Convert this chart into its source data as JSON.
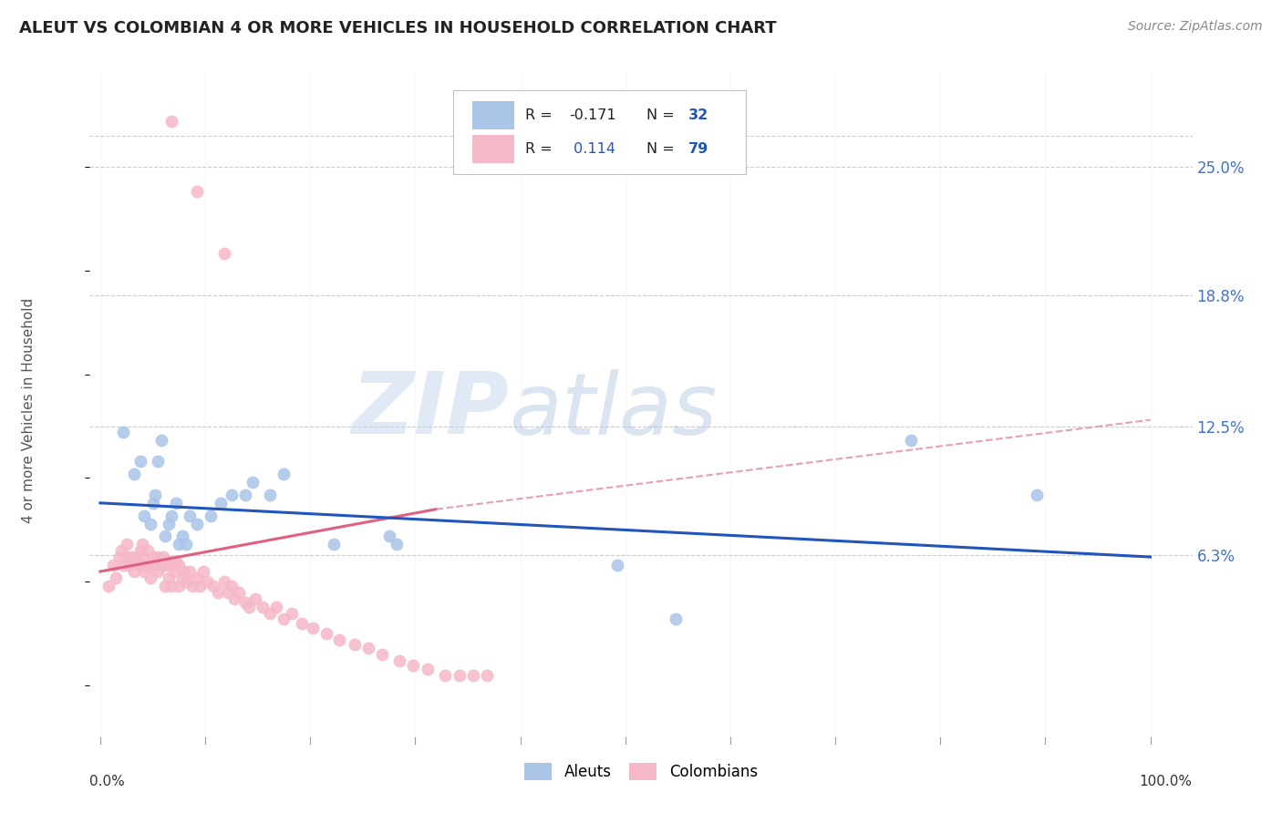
{
  "title": "ALEUT VS COLOMBIAN 4 OR MORE VEHICLES IN HOUSEHOLD CORRELATION CHART",
  "source": "Source: ZipAtlas.com",
  "ylabel": "4 or more Vehicles in Household",
  "ytick_values": [
    0.063,
    0.125,
    0.188,
    0.25
  ],
  "ytick_labels": [
    "6.3%",
    "12.5%",
    "18.8%",
    "25.0%"
  ],
  "xlim": [
    0.0,
    1.0
  ],
  "ylim": [
    -0.03,
    0.295
  ],
  "aleut_color": "#aac4e8",
  "colombian_color": "#f5b8c8",
  "aleut_line_color": "#2255bb",
  "colombian_line_color": "#e06080",
  "colombian_dash_color": "#e8a0b0",
  "watermark_zip_color": "#c8d8ee",
  "watermark_atlas_color": "#b0c8e8",
  "aleut_x": [
    0.022,
    0.032,
    0.038,
    0.042,
    0.048,
    0.05,
    0.052,
    0.055,
    0.058,
    0.062,
    0.065,
    0.068,
    0.072,
    0.075,
    0.078,
    0.082,
    0.085,
    0.092,
    0.105,
    0.115,
    0.125,
    0.138,
    0.145,
    0.162,
    0.175,
    0.222,
    0.275,
    0.282,
    0.492,
    0.548,
    0.772,
    0.892
  ],
  "aleut_y": [
    0.122,
    0.102,
    0.108,
    0.082,
    0.078,
    0.088,
    0.092,
    0.108,
    0.118,
    0.072,
    0.078,
    0.082,
    0.088,
    0.068,
    0.072,
    0.068,
    0.082,
    0.078,
    0.082,
    0.088,
    0.092,
    0.092,
    0.098,
    0.092,
    0.102,
    0.068,
    0.072,
    0.068,
    0.058,
    0.032,
    0.118,
    0.092
  ],
  "colombian_x": [
    0.008,
    0.012,
    0.015,
    0.018,
    0.02,
    0.022,
    0.025,
    0.025,
    0.028,
    0.03,
    0.032,
    0.035,
    0.038,
    0.038,
    0.04,
    0.04,
    0.042,
    0.042,
    0.045,
    0.045,
    0.048,
    0.048,
    0.05,
    0.052,
    0.055,
    0.055,
    0.058,
    0.06,
    0.062,
    0.062,
    0.065,
    0.065,
    0.068,
    0.068,
    0.07,
    0.072,
    0.075,
    0.075,
    0.078,
    0.08,
    0.082,
    0.085,
    0.088,
    0.092,
    0.095,
    0.098,
    0.102,
    0.108,
    0.112,
    0.118,
    0.122,
    0.125,
    0.128,
    0.132,
    0.138,
    0.142,
    0.148,
    0.155,
    0.162,
    0.168,
    0.175,
    0.182,
    0.192,
    0.202,
    0.215,
    0.228,
    0.242,
    0.255,
    0.268,
    0.285,
    0.298,
    0.312,
    0.328,
    0.342,
    0.355,
    0.368,
    0.068,
    0.092,
    0.118
  ],
  "colombian_y": [
    0.048,
    0.058,
    0.052,
    0.062,
    0.065,
    0.058,
    0.062,
    0.068,
    0.058,
    0.062,
    0.055,
    0.062,
    0.058,
    0.065,
    0.058,
    0.068,
    0.055,
    0.062,
    0.058,
    0.065,
    0.052,
    0.058,
    0.062,
    0.058,
    0.055,
    0.062,
    0.058,
    0.062,
    0.048,
    0.058,
    0.052,
    0.06,
    0.048,
    0.058,
    0.055,
    0.06,
    0.048,
    0.058,
    0.052,
    0.055,
    0.05,
    0.055,
    0.048,
    0.052,
    0.048,
    0.055,
    0.05,
    0.048,
    0.045,
    0.05,
    0.045,
    0.048,
    0.042,
    0.045,
    0.04,
    0.038,
    0.042,
    0.038,
    0.035,
    0.038,
    0.032,
    0.035,
    0.03,
    0.028,
    0.025,
    0.022,
    0.02,
    0.018,
    0.015,
    0.012,
    0.01,
    0.008,
    0.005,
    0.005,
    0.005,
    0.005,
    0.272,
    0.238,
    0.208
  ]
}
